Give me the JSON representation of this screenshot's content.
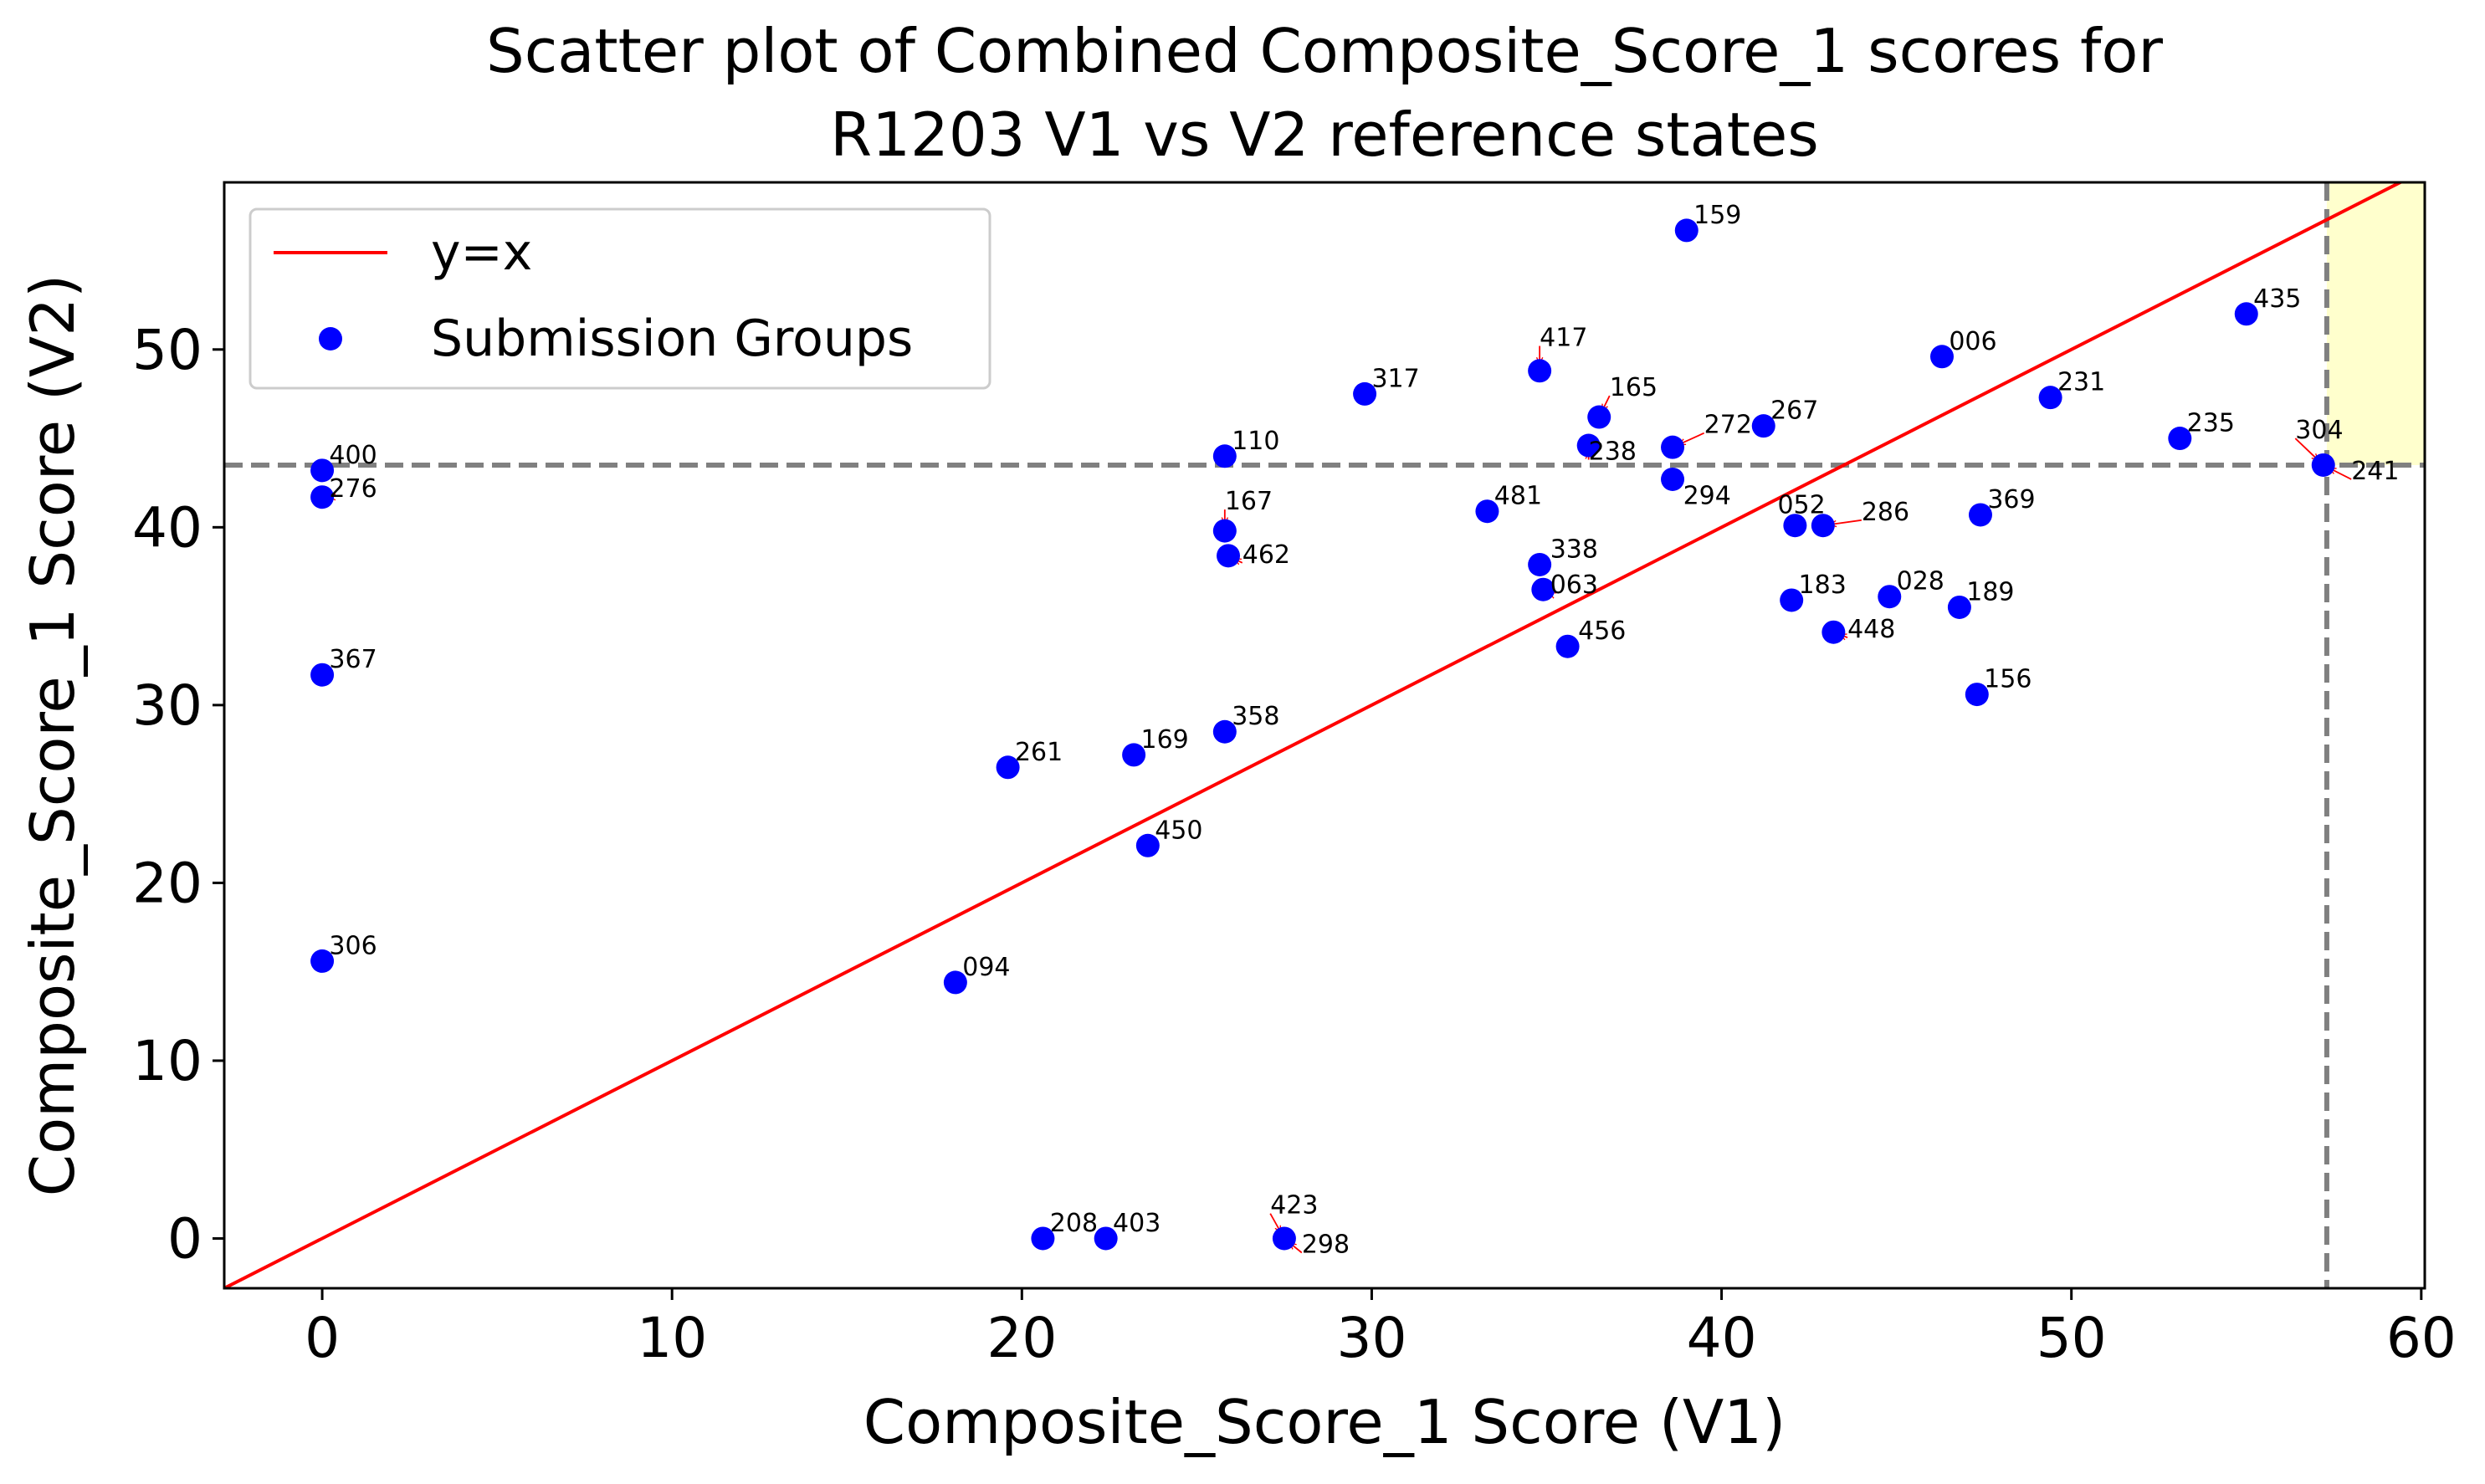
{
  "chart_data": {
    "type": "scatter",
    "title_lines": [
      "Scatter plot of Combined Composite_Score_1 scores for",
      "R1203 V1 vs V2 reference states"
    ],
    "xlabel": "Composite_Score_1 Score (V1)",
    "ylabel": "Composite_Score_1 Score (V2)",
    "xlim": [
      -2.8,
      60.1
    ],
    "ylim": [
      -2.8,
      59.4
    ],
    "xticks": [
      0,
      10,
      20,
      30,
      40,
      50,
      60
    ],
    "yticks": [
      0,
      10,
      20,
      30,
      40,
      50
    ],
    "grid": false,
    "legend": {
      "placement": "top-left",
      "entries": [
        {
          "label": "y=x",
          "kind": "line",
          "color": "#ff0000"
        },
        {
          "label": "Submission Groups",
          "kind": "marker",
          "color": "#0000ff"
        }
      ]
    },
    "reference_line": {
      "name": "y=x",
      "color": "#ff0000"
    },
    "threshold_lines": {
      "x": 57.3,
      "y": 43.5,
      "color": "#808080",
      "style": "dashed"
    },
    "highlight_region": {
      "x_from": 57.3,
      "y_from": 43.5,
      "color": "#ffffc8"
    },
    "point_color": "#0000ff",
    "arrow_color": "#ff0000",
    "points": [
      {
        "label": "159",
        "x": 39.0,
        "y": 56.7,
        "lx": 39.2,
        "ly": 57.1,
        "arrow": false
      },
      {
        "label": "435",
        "x": 55.0,
        "y": 52.0,
        "lx": 55.2,
        "ly": 52.4,
        "arrow": false
      },
      {
        "label": "417",
        "x": 34.8,
        "y": 48.8,
        "lx": 34.8,
        "ly": 50.2,
        "arrow": true
      },
      {
        "label": "006",
        "x": 46.3,
        "y": 49.6,
        "lx": 46.5,
        "ly": 50.0,
        "arrow": false
      },
      {
        "label": "317",
        "x": 29.8,
        "y": 47.5,
        "lx": 30.0,
        "ly": 47.9,
        "arrow": false
      },
      {
        "label": "165",
        "x": 36.5,
        "y": 46.2,
        "lx": 36.8,
        "ly": 47.4,
        "arrow": true
      },
      {
        "label": "231",
        "x": 49.4,
        "y": 47.3,
        "lx": 49.6,
        "ly": 47.7,
        "arrow": false
      },
      {
        "label": "267",
        "x": 41.2,
        "y": 45.7,
        "lx": 41.4,
        "ly": 46.1,
        "arrow": false
      },
      {
        "label": "272",
        "x": 38.6,
        "y": 44.5,
        "lx": 39.5,
        "ly": 45.3,
        "arrow": true
      },
      {
        "label": "238",
        "x": 36.2,
        "y": 44.6,
        "lx": 36.2,
        "ly": 43.8,
        "arrow": true
      },
      {
        "label": "235",
        "x": 53.1,
        "y": 45.0,
        "lx": 53.3,
        "ly": 45.4,
        "arrow": false
      },
      {
        "label": "304",
        "x": 57.2,
        "y": 43.5,
        "lx": 56.4,
        "ly": 45.0,
        "arrow": true
      },
      {
        "label": "241",
        "x": 57.2,
        "y": 43.5,
        "lx": 58.0,
        "ly": 42.7,
        "arrow": true
      },
      {
        "label": "110",
        "x": 25.8,
        "y": 44.0,
        "lx": 26.0,
        "ly": 44.4,
        "arrow": false
      },
      {
        "label": "400",
        "x": 0.0,
        "y": 43.2,
        "lx": 0.2,
        "ly": 43.6,
        "arrow": false
      },
      {
        "label": "276",
        "x": 0.0,
        "y": 41.7,
        "lx": 0.2,
        "ly": 41.7,
        "arrow": true
      },
      {
        "label": "294",
        "x": 38.6,
        "y": 42.7,
        "lx": 38.9,
        "ly": 41.3,
        "arrow": false
      },
      {
        "label": "481",
        "x": 33.3,
        "y": 40.9,
        "lx": 33.5,
        "ly": 41.3,
        "arrow": false
      },
      {
        "label": "052",
        "x": 42.1,
        "y": 40.1,
        "lx": 41.6,
        "ly": 40.8,
        "arrow": false
      },
      {
        "label": "286",
        "x": 42.9,
        "y": 40.1,
        "lx": 44.0,
        "ly": 40.4,
        "arrow": true
      },
      {
        "label": "369",
        "x": 47.4,
        "y": 40.7,
        "lx": 47.6,
        "ly": 41.1,
        "arrow": false
      },
      {
        "label": "167",
        "x": 25.8,
        "y": 39.8,
        "lx": 25.8,
        "ly": 41.0,
        "arrow": true
      },
      {
        "label": "462",
        "x": 25.9,
        "y": 38.4,
        "lx": 26.3,
        "ly": 38.0,
        "arrow": true
      },
      {
        "label": "338",
        "x": 34.8,
        "y": 37.9,
        "lx": 35.1,
        "ly": 38.3,
        "arrow": false
      },
      {
        "label": "063",
        "x": 34.9,
        "y": 36.5,
        "lx": 35.1,
        "ly": 36.3,
        "arrow": true
      },
      {
        "label": "183",
        "x": 42.0,
        "y": 35.9,
        "lx": 42.2,
        "ly": 36.3,
        "arrow": false
      },
      {
        "label": "028",
        "x": 44.8,
        "y": 36.1,
        "lx": 45.0,
        "ly": 36.5,
        "arrow": false
      },
      {
        "label": "189",
        "x": 46.8,
        "y": 35.5,
        "lx": 47.0,
        "ly": 35.9,
        "arrow": false
      },
      {
        "label": "448",
        "x": 43.2,
        "y": 34.1,
        "lx": 43.6,
        "ly": 33.8,
        "arrow": true
      },
      {
        "label": "456",
        "x": 35.6,
        "y": 33.3,
        "lx": 35.9,
        "ly": 33.7,
        "arrow": false
      },
      {
        "label": "367",
        "x": 0.0,
        "y": 31.7,
        "lx": 0.2,
        "ly": 32.1,
        "arrow": false
      },
      {
        "label": "156",
        "x": 47.3,
        "y": 30.6,
        "lx": 47.5,
        "ly": 31.0,
        "arrow": false
      },
      {
        "label": "358",
        "x": 25.8,
        "y": 28.5,
        "lx": 26.0,
        "ly": 28.9,
        "arrow": false
      },
      {
        "label": "169",
        "x": 23.2,
        "y": 27.2,
        "lx": 23.4,
        "ly": 27.6,
        "arrow": false
      },
      {
        "label": "261",
        "x": 19.6,
        "y": 26.5,
        "lx": 19.8,
        "ly": 26.9,
        "arrow": false
      },
      {
        "label": "450",
        "x": 23.6,
        "y": 22.1,
        "lx": 23.8,
        "ly": 22.5,
        "arrow": false
      },
      {
        "label": "306",
        "x": 0.0,
        "y": 15.6,
        "lx": 0.2,
        "ly": 16.0,
        "arrow": false
      },
      {
        "label": "094",
        "x": 18.1,
        "y": 14.4,
        "lx": 18.3,
        "ly": 14.8,
        "arrow": false
      },
      {
        "label": "208",
        "x": 20.6,
        "y": 0.0,
        "lx": 20.8,
        "ly": 0.4,
        "arrow": false
      },
      {
        "label": "403",
        "x": 22.4,
        "y": 0.0,
        "lx": 22.6,
        "ly": 0.4,
        "arrow": false
      },
      {
        "label": "423",
        "x": 27.5,
        "y": 0.0,
        "lx": 27.1,
        "ly": 1.4,
        "arrow": true
      },
      {
        "label": "298",
        "x": 27.5,
        "y": 0.0,
        "lx": 28.0,
        "ly": -0.8,
        "arrow": true
      }
    ]
  }
}
